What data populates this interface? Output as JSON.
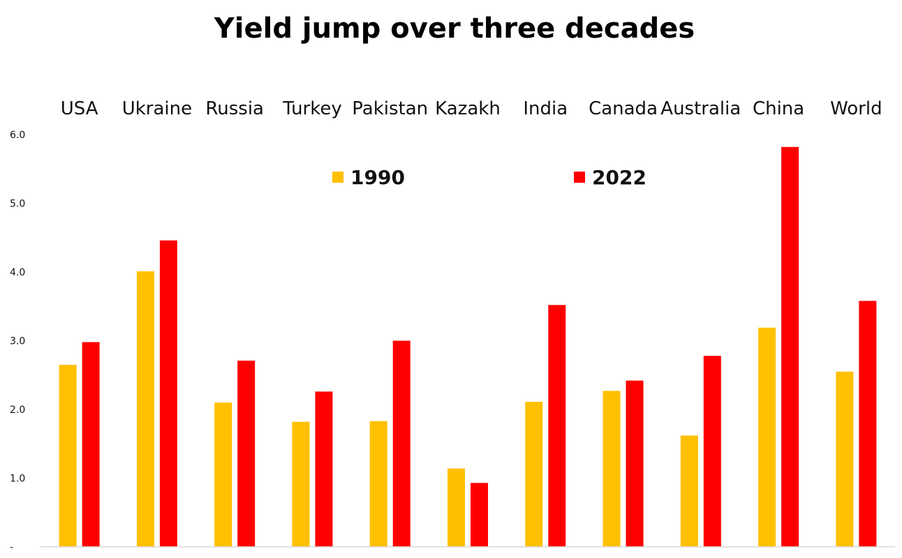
{
  "chart_data": {
    "type": "bar",
    "title": "Yield jump over three decades",
    "categories": [
      "USA",
      "Ukraine",
      "Russia",
      "Turkey",
      "Pakistan",
      "Kazakh",
      "India",
      "Canada",
      "Australia",
      "China",
      "World"
    ],
    "series": [
      {
        "name": "1990",
        "color": "#FFC000",
        "values": [
          2.65,
          4.01,
          2.1,
          1.82,
          1.83,
          1.14,
          2.11,
          2.27,
          1.62,
          3.19,
          2.55
        ]
      },
      {
        "name": "2022",
        "color": "#FF0000",
        "values": [
          2.98,
          4.46,
          2.71,
          2.26,
          3.0,
          0.93,
          3.52,
          2.42,
          2.78,
          5.82,
          3.58
        ]
      }
    ],
    "ylim": [
      0,
      6.0
    ],
    "yticks": [
      "-",
      "1.0",
      "2.0",
      "3.0",
      "4.0",
      "5.0",
      "6.0"
    ],
    "xlabel": "",
    "ylabel": "",
    "grid": false,
    "legend_position": "top-center"
  }
}
